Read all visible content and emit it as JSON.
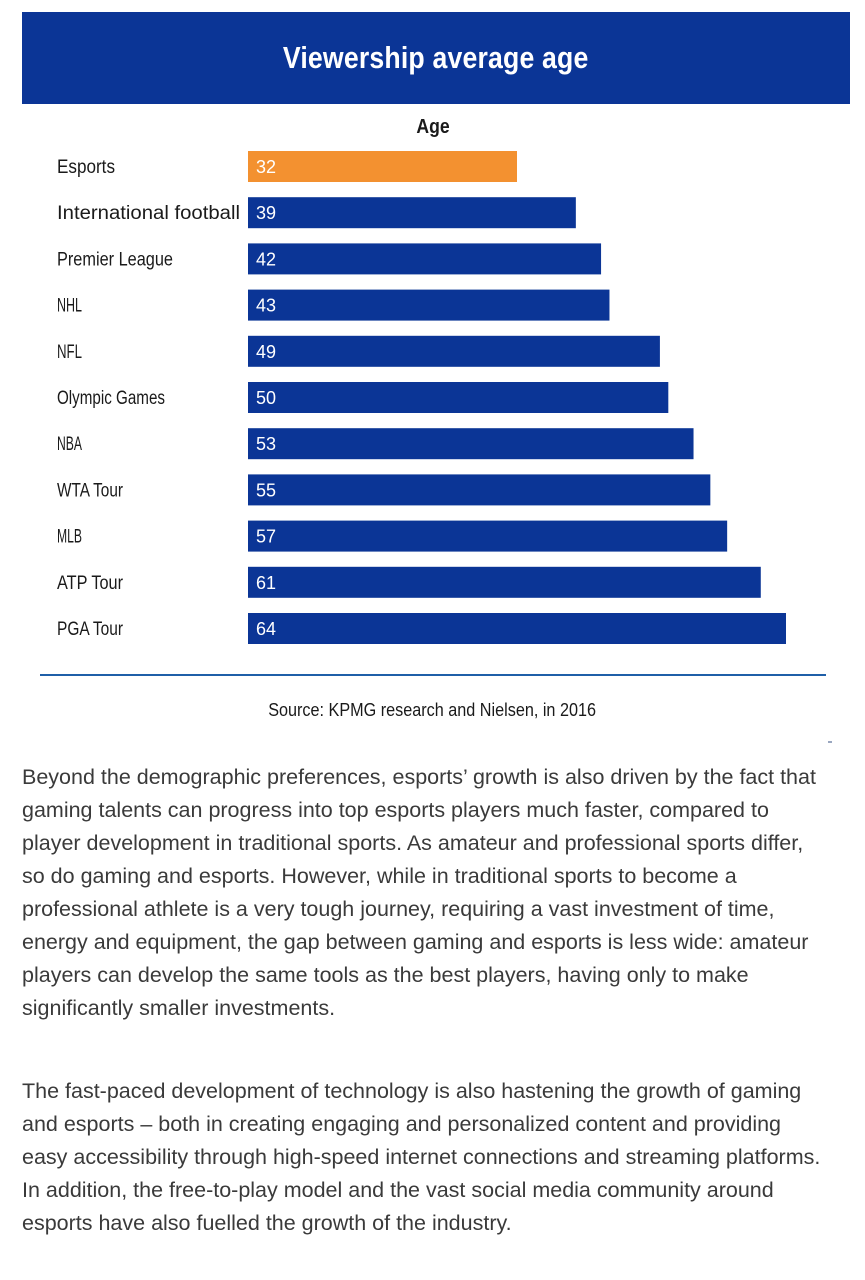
{
  "title": "Viewership average age",
  "chart_data": {
    "type": "bar",
    "orientation": "horizontal",
    "series_label": "Age",
    "categories": [
      "Esports",
      "International football",
      "Premier League",
      "NHL",
      "NFL",
      "Olympic Games",
      "NBA",
      "WTA Tour",
      "MLB",
      "ATP Tour",
      "PGA Tour"
    ],
    "values": [
      32,
      39,
      42,
      43,
      49,
      50,
      53,
      55,
      57,
      61,
      64
    ],
    "highlight_category": "Esports",
    "colors": {
      "default": "#0b3596",
      "highlight": "#f39130"
    },
    "xlim": [
      0,
      64
    ],
    "grid": false
  },
  "source": "Source: KPMG research and Nielsen, in 2016",
  "paragraphs": [
    "Beyond the demographic preferences, esports’ growth is also driven by the fact that gaming talents can progress into top esports players much faster, compared to player development in traditional sports. As amateur and professional sports differ, so do gaming and esports. However, while in traditional sports to become a professional athlete is a very tough journey, requiring a vast investment of time, energy and equipment, the gap between gaming and esports is less wide: amateur players can develop the same tools as the best players, having only to make significantly smaller investments.",
    "The fast-paced development of technology is also hastening the growth of gaming and esports – both in creating engaging and personalized content and providing easy accessibility through high-speed internet connections and streaming platforms. In addition, the free-to-play model and the vast social media community around esports have also fuelled the growth of the industry."
  ]
}
